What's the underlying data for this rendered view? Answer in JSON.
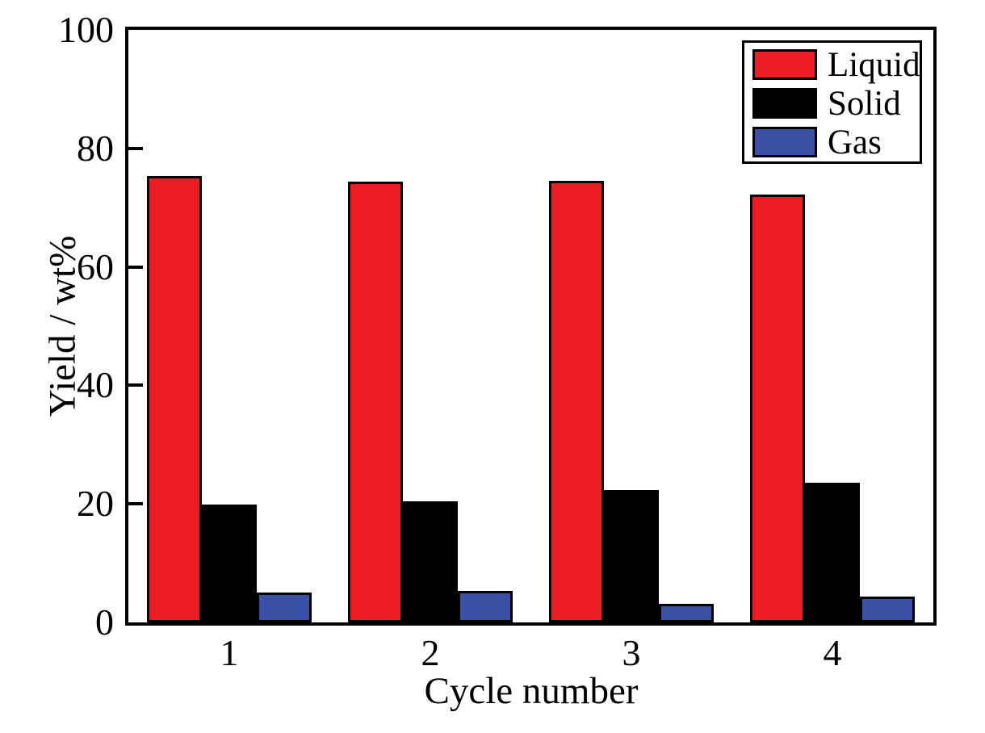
{
  "chart_data": {
    "type": "bar",
    "title": "",
    "xlabel": "Cycle number",
    "ylabel": "Yield / wt%",
    "categories": [
      "1",
      "2",
      "3",
      "4"
    ],
    "series": [
      {
        "name": "Liquid",
        "color": "#EB1C24",
        "values": [
          75.3,
          74.4,
          74.5,
          72.2
        ]
      },
      {
        "name": "Solid",
        "color": "#000000",
        "values": [
          19.9,
          20.5,
          22.4,
          23.6
        ]
      },
      {
        "name": "Gas",
        "color": "#3B51A5",
        "values": [
          5.0,
          5.3,
          3.2,
          4.4
        ]
      }
    ],
    "ylim": [
      0,
      100
    ],
    "yticks": [
      0,
      20,
      40,
      60,
      80,
      100
    ],
    "grid": false,
    "legend_position": "top-right",
    "bar_edge_color": "#000000",
    "frame": "full-box"
  }
}
